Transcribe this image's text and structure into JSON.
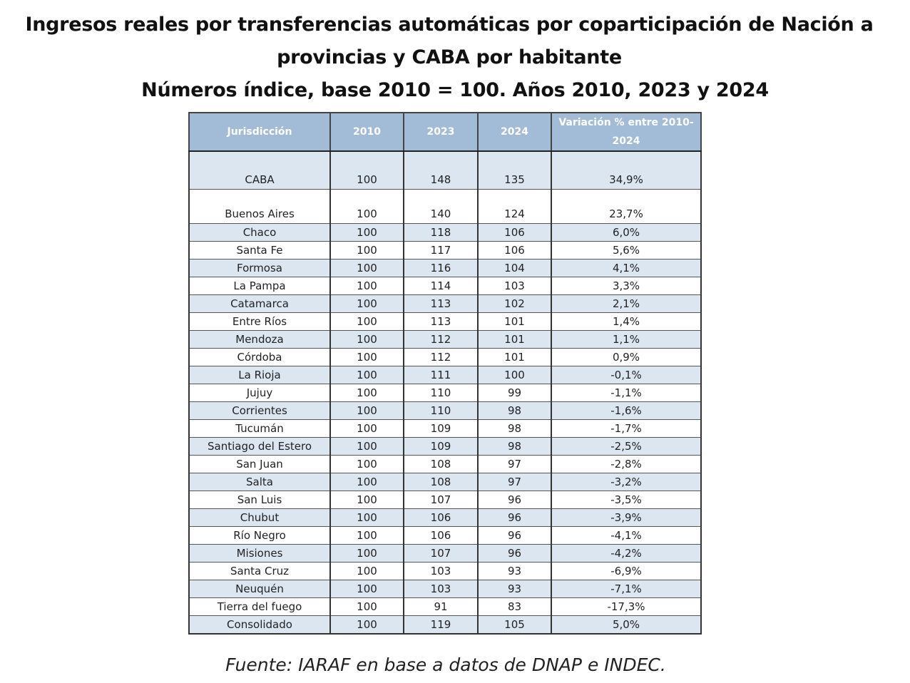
{
  "header": {
    "title": "Ingresos reales por transferencias automáticas por coparticipación de Nación a provincias y CABA por habitante",
    "subtitle": "Números índice, base 2010 = 100. Años 2010, 2023 y 2024"
  },
  "table": {
    "header": [
      "Jurisdicción",
      "2010",
      "2023",
      "2024",
      "Variación % entre 2010-2024"
    ],
    "rows": [
      [
        "CABA",
        "100",
        "148",
        "135",
        "34,9%"
      ],
      [
        "Buenos Aires",
        "100",
        "140",
        "124",
        "23,7%"
      ],
      [
        "Chaco",
        "100",
        "118",
        "106",
        "6,0%"
      ],
      [
        "Santa Fe",
        "100",
        "117",
        "106",
        "5,6%"
      ],
      [
        "Formosa",
        "100",
        "116",
        "104",
        "4,1%"
      ],
      [
        "La Pampa",
        "100",
        "114",
        "103",
        "3,3%"
      ],
      [
        "Catamarca",
        "100",
        "113",
        "102",
        "2,1%"
      ],
      [
        "Entre Ríos",
        "100",
        "113",
        "101",
        "1,4%"
      ],
      [
        "Mendoza",
        "100",
        "112",
        "101",
        "1,1%"
      ],
      [
        "Córdoba",
        "100",
        "112",
        "101",
        "0,9%"
      ],
      [
        "La Rioja",
        "100",
        "111",
        "100",
        "-0,1%"
      ],
      [
        "Jujuy",
        "100",
        "110",
        "99",
        "-1,1%"
      ],
      [
        "Corrientes",
        "100",
        "110",
        "98",
        "-1,6%"
      ],
      [
        "Tucumán",
        "100",
        "109",
        "98",
        "-1,7%"
      ],
      [
        "Santiago del Estero",
        "100",
        "109",
        "98",
        "-2,5%"
      ],
      [
        "San Juan",
        "100",
        "108",
        "97",
        "-2,8%"
      ],
      [
        "Salta",
        "100",
        "108",
        "97",
        "-3,2%"
      ],
      [
        "San Luis",
        "100",
        "107",
        "96",
        "-3,5%"
      ],
      [
        "Chubut",
        "100",
        "106",
        "96",
        "-3,9%"
      ],
      [
        "Río Negro",
        "100",
        "106",
        "96",
        "-4,1%"
      ],
      [
        "Misiones",
        "100",
        "107",
        "96",
        "-4,2%"
      ],
      [
        "Santa Cruz",
        "100",
        "103",
        "93",
        "-6,9%"
      ],
      [
        "Neuquén",
        "100",
        "103",
        "93",
        "-7,1%"
      ],
      [
        "Tierra del fuego",
        "100",
        "91",
        "83",
        "-17,3%"
      ],
      [
        "Consolidado",
        "100",
        "119",
        "105",
        "5,0%"
      ]
    ]
  },
  "footer": {
    "source": "Fuente: IARAF en base a datos de DNAP e INDEC."
  }
}
